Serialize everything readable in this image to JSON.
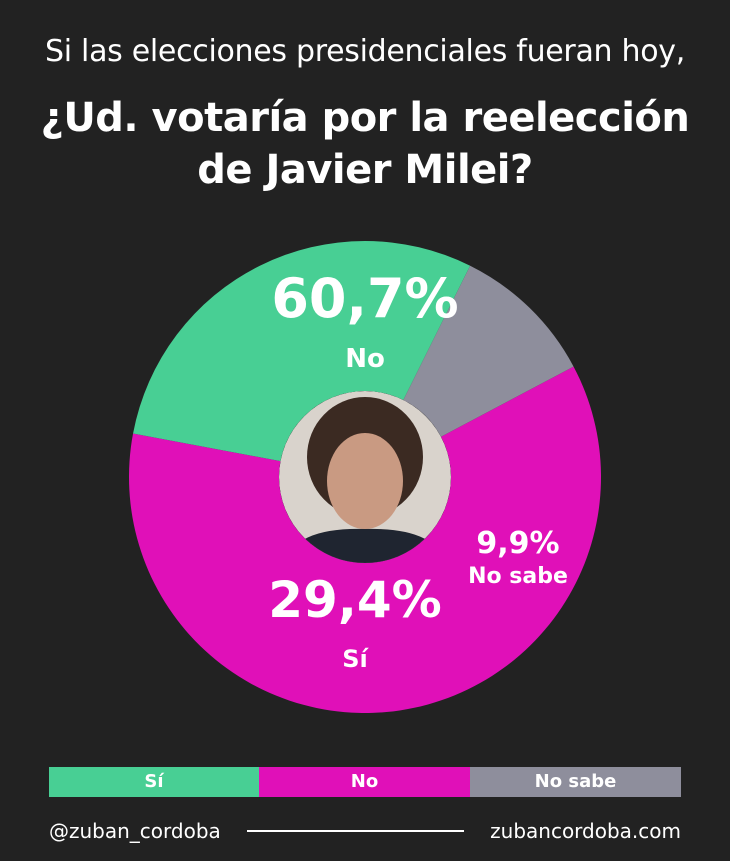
{
  "header": {
    "subtitle": "Si las elecciones presidenciales fueran hoy,",
    "title_line1": "¿Ud. votaría por la reelección",
    "title_line2": "de Javier Milei?"
  },
  "chart_data": {
    "type": "pie",
    "style": "donut with center photo",
    "categories": [
      "No",
      "Sí",
      "No sabe"
    ],
    "values": [
      60.7,
      29.4,
      9.9
    ],
    "value_labels": [
      "60,7%",
      "29,4%",
      "9,9%"
    ],
    "colors": [
      "#e010b8",
      "#48cf94",
      "#8e8e9c"
    ],
    "legend_placement": "bottom"
  },
  "legend": [
    {
      "label": "Sí",
      "color": "#48cf94"
    },
    {
      "label": "No",
      "color": "#e010b8"
    },
    {
      "label": "No sabe",
      "color": "#8e8e9c"
    }
  ],
  "footer": {
    "handle": "@zuban_cordoba",
    "website": "zubancordoba.com"
  },
  "center_image": {
    "icon": "portrait-photo"
  }
}
